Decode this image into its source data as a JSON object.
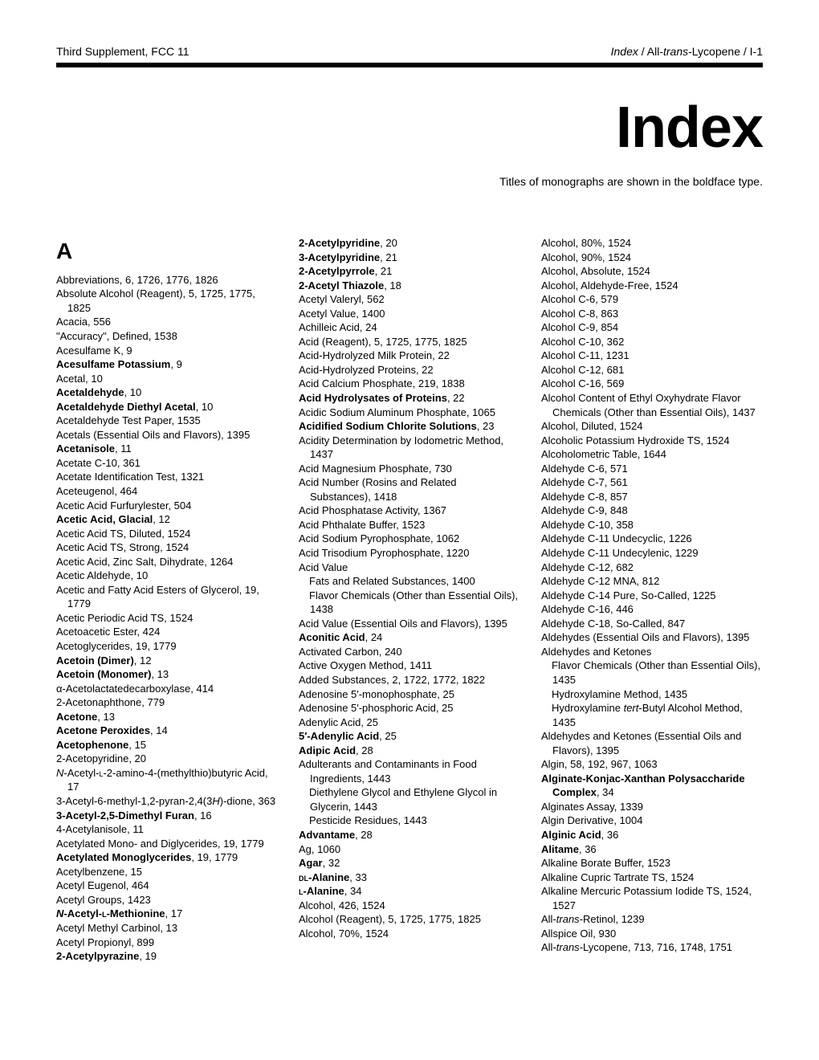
{
  "header": {
    "left": "Third Supplement, FCC 11",
    "right_italic": "Index",
    "right_mid": " / All-",
    "right_trans": "trans",
    "right_tail": "-Lycopene / I-1"
  },
  "title": "Index",
  "subtitle": "Titles of monographs are shown in the boldface type.",
  "col1": {
    "letter": "A",
    "entries": [
      {
        "t": "Abbreviations, 6, 1726, 1776, 1826"
      },
      {
        "t": "Absolute Alcohol (Reagent), 5, 1725, 1775, 1825"
      },
      {
        "t": "Acacia, 556"
      },
      {
        "t": "\"Accuracy\", Defined, 1538"
      },
      {
        "t": "Acesulfame K, 9"
      },
      {
        "b": "Acesulfame Potassium",
        "r": ", 9"
      },
      {
        "t": "Acetal, 10"
      },
      {
        "b": "Acetaldehyde",
        "r": ", 10"
      },
      {
        "b": "Acetaldehyde Diethyl Acetal",
        "r": ", 10"
      },
      {
        "t": "Acetaldehyde Test Paper, 1535"
      },
      {
        "t": "Acetals (Essential Oils and Flavors), 1395"
      },
      {
        "b": "Acetanisole",
        "r": ", 11"
      },
      {
        "t": "Acetate C-10, 361"
      },
      {
        "t": "Acetate Identification Test, 1321"
      },
      {
        "t": "Aceteugenol, 464"
      },
      {
        "t": "Acetic Acid Furfurylester, 504"
      },
      {
        "b": "Acetic Acid, Glacial",
        "r": ", 12"
      },
      {
        "t": "Acetic Acid TS, Diluted, 1524"
      },
      {
        "t": "Acetic Acid TS, Strong, 1524"
      },
      {
        "t": "Acetic Acid, Zinc Salt, Dihydrate, 1264"
      },
      {
        "t": "Acetic Aldehyde, 10"
      },
      {
        "t": "Acetic and Fatty Acid Esters of Glycerol, 19, 1779"
      },
      {
        "t": "Acetic Periodic Acid TS, 1524"
      },
      {
        "t": "Acetoacetic Ester, 424"
      },
      {
        "t": "Acetoglycerides, 19, 1779"
      },
      {
        "b": "Acetoin (Dimer)",
        "r": ", 12"
      },
      {
        "b": "Acetoin (Monomer)",
        "r": ", 13"
      },
      {
        "t": "α-Acetolactatedecarboxylase, 414"
      },
      {
        "t": "2-Acetonaphthone, 779"
      },
      {
        "b": "Acetone",
        "r": ", 13"
      },
      {
        "b": "Acetone Peroxides",
        "r": ", 14"
      },
      {
        "b": "Acetophenone",
        "r": ", 15"
      },
      {
        "t": "2-Acetopyridine, 20"
      },
      {
        "html": "<span class='ital'>N</span>-Acetyl-<span class='sc'>l</span>-2-amino-4-(methylthio)butyric Acid, 17"
      },
      {
        "html": "3-Acetyl-6-methyl-1,2-pyran-2,4(3<span class='ital'>H</span>)-dione, 363"
      },
      {
        "b": "3-Acetyl-2,5-Dimethyl Furan",
        "r": ", 16"
      },
      {
        "t": "4-Acetylanisole, 11"
      },
      {
        "t": "Acetylated Mono- and Diglycerides, 19, 1779"
      },
      {
        "b": "Acetylated Monoglycerides",
        "r": ", 19, 1779"
      },
      {
        "t": "Acetylbenzene, 15"
      },
      {
        "t": "Acetyl Eugenol, 464"
      },
      {
        "t": "Acetyl Groups, 1423"
      },
      {
        "bhtml": "<span class='ital'>N</span>-Acetyl-<span class='sc'>l</span>-Methionine",
        "r": ", 17"
      },
      {
        "t": "Acetyl Methyl Carbinol, 13"
      },
      {
        "t": "Acetyl Propionyl, 899"
      },
      {
        "b": "2-Acetylpyrazine",
        "r": ", 19"
      }
    ]
  },
  "col2": {
    "entries": [
      {
        "b": "2-Acetylpyridine",
        "r": ", 20"
      },
      {
        "b": "3-Acetylpyridine",
        "r": ", 21"
      },
      {
        "b": "2-Acetylpyrrole",
        "r": ", 21"
      },
      {
        "b": "2-Acetyl Thiazole",
        "r": ", 18"
      },
      {
        "t": "Acetyl Valeryl, 562"
      },
      {
        "t": "Acetyl Value, 1400"
      },
      {
        "t": "Achilleic Acid, 24"
      },
      {
        "t": "Acid (Reagent), 5, 1725, 1775, 1825"
      },
      {
        "t": "Acid-Hydrolyzed Milk Protein, 22"
      },
      {
        "t": "Acid-Hydrolyzed Proteins, 22"
      },
      {
        "t": "Acid Calcium Phosphate, 219, 1838"
      },
      {
        "b": "Acid Hydrolysates of Proteins",
        "r": ", 22"
      },
      {
        "t": "Acidic Sodium Aluminum Phosphate, 1065"
      },
      {
        "b": "Acidified Sodium Chlorite Solutions",
        "r": ", 23"
      },
      {
        "t": "Acidity Determination by Iodometric Method, 1437"
      },
      {
        "t": "Acid Magnesium Phosphate, 730"
      },
      {
        "t": "Acid Number (Rosins and Related Substances), 1418"
      },
      {
        "t": "Acid Phosphatase Activity, 1367"
      },
      {
        "t": "Acid Phthalate Buffer, 1523"
      },
      {
        "t": "Acid Sodium Pyrophosphate, 1062"
      },
      {
        "t": "Acid Trisodium Pyrophosphate, 1220"
      },
      {
        "t": "Acid Value"
      },
      {
        "t": " Fats and Related Substances, 1400"
      },
      {
        "t": " Flavor Chemicals (Other than Essential Oils), 1438"
      },
      {
        "t": "Acid Value (Essential Oils and Flavors), 1395"
      },
      {
        "b": "Aconitic Acid",
        "r": ", 24"
      },
      {
        "t": "Activated Carbon, 240"
      },
      {
        "t": "Active Oxygen Method, 1411"
      },
      {
        "t": "Added Substances, 2, 1722, 1772, 1822"
      },
      {
        "t": "Adenosine 5′-monophosphate, 25"
      },
      {
        "t": "Adenosine 5′-phosphoric Acid, 25"
      },
      {
        "t": "Adenylic Acid, 25"
      },
      {
        "b": "5′-Adenylic Acid",
        "r": ", 25"
      },
      {
        "b": "Adipic Acid",
        "r": ", 28"
      },
      {
        "t": "Adulterants and Contaminants in Food Ingredients, 1443"
      },
      {
        "t": " Diethylene Glycol and Ethylene Glycol in Glycerin, 1443"
      },
      {
        "t": " Pesticide Residues, 1443"
      },
      {
        "b": "Advantame",
        "r": ", 28"
      },
      {
        "t": "Ag, 1060"
      },
      {
        "b": "Agar",
        "r": ", 32"
      },
      {
        "bhtml": "<span class='sc'>dl</span>-Alanine",
        "r": ", 33"
      },
      {
        "bhtml": "<span class='sc'>l</span>-Alanine",
        "r": ", 34"
      },
      {
        "t": "Alcohol, 426, 1524"
      },
      {
        "t": "Alcohol (Reagent), 5, 1725, 1775, 1825"
      },
      {
        "t": "Alcohol, 70%, 1524"
      }
    ]
  },
  "col3": {
    "entries": [
      {
        "t": "Alcohol, 80%, 1524"
      },
      {
        "t": "Alcohol, 90%, 1524"
      },
      {
        "t": "Alcohol, Absolute, 1524"
      },
      {
        "t": "Alcohol, Aldehyde-Free, 1524"
      },
      {
        "t": "Alcohol C-6, 579"
      },
      {
        "t": "Alcohol C-8, 863"
      },
      {
        "t": "Alcohol C-9, 854"
      },
      {
        "t": "Alcohol C-10, 362"
      },
      {
        "t": "Alcohol C-11, 1231"
      },
      {
        "t": "Alcohol C-12, 681"
      },
      {
        "t": "Alcohol C-16, 569"
      },
      {
        "t": "Alcohol Content of Ethyl Oxyhydrate Flavor Chemicals (Other than Essential Oils), 1437"
      },
      {
        "t": "Alcohol, Diluted, 1524"
      },
      {
        "t": "Alcoholic Potassium Hydroxide TS, 1524"
      },
      {
        "t": "Alcoholometric Table, 1644"
      },
      {
        "t": "Aldehyde C-6, 571"
      },
      {
        "t": "Aldehyde C-7, 561"
      },
      {
        "t": "Aldehyde C-8, 857"
      },
      {
        "t": "Aldehyde C-9, 848"
      },
      {
        "t": "Aldehyde C-10, 358"
      },
      {
        "t": "Aldehyde C-11 Undecyclic, 1226"
      },
      {
        "t": "Aldehyde C-11 Undecylenic, 1229"
      },
      {
        "t": "Aldehyde C-12, 682"
      },
      {
        "t": "Aldehyde C-12 MNA, 812"
      },
      {
        "t": "Aldehyde C-14 Pure, So-Called, 1225"
      },
      {
        "t": "Aldehyde C-16, 446"
      },
      {
        "t": "Aldehyde C-18, So-Called, 847"
      },
      {
        "t": "Aldehydes (Essential Oils and Flavors), 1395"
      },
      {
        "t": "Aldehydes and Ketones"
      },
      {
        "t": " Flavor Chemicals (Other than Essential Oils), 1435"
      },
      {
        "t": " Hydroxylamine Method, 1435"
      },
      {
        "html": " Hydroxylamine <span class='ital'>tert</span>-Butyl Alcohol Method, 1435"
      },
      {
        "t": "Aldehydes and Ketones (Essential Oils and Flavors), 1395"
      },
      {
        "t": "Algin, 58, 192, 967, 1063"
      },
      {
        "b": "Alginate-Konjac-Xanthan Polysaccharide Complex",
        "r": ", 34"
      },
      {
        "t": "Alginates Assay, 1339"
      },
      {
        "t": "Algin Derivative, 1004"
      },
      {
        "b": "Alginic Acid",
        "r": ", 36"
      },
      {
        "b": "Alitame",
        "r": ", 36"
      },
      {
        "t": "Alkaline Borate Buffer, 1523"
      },
      {
        "t": "Alkaline Cupric Tartrate TS, 1524"
      },
      {
        "t": "Alkaline Mercuric Potassium Iodide TS, 1524, 1527"
      },
      {
        "html": "All-<span class='ital'>trans</span>-Retinol, 1239"
      },
      {
        "t": "Allspice Oil, 930"
      },
      {
        "html": "All-<span class='ital'>trans</span>-Lycopene, 713, 716, 1748, 1751"
      }
    ]
  }
}
